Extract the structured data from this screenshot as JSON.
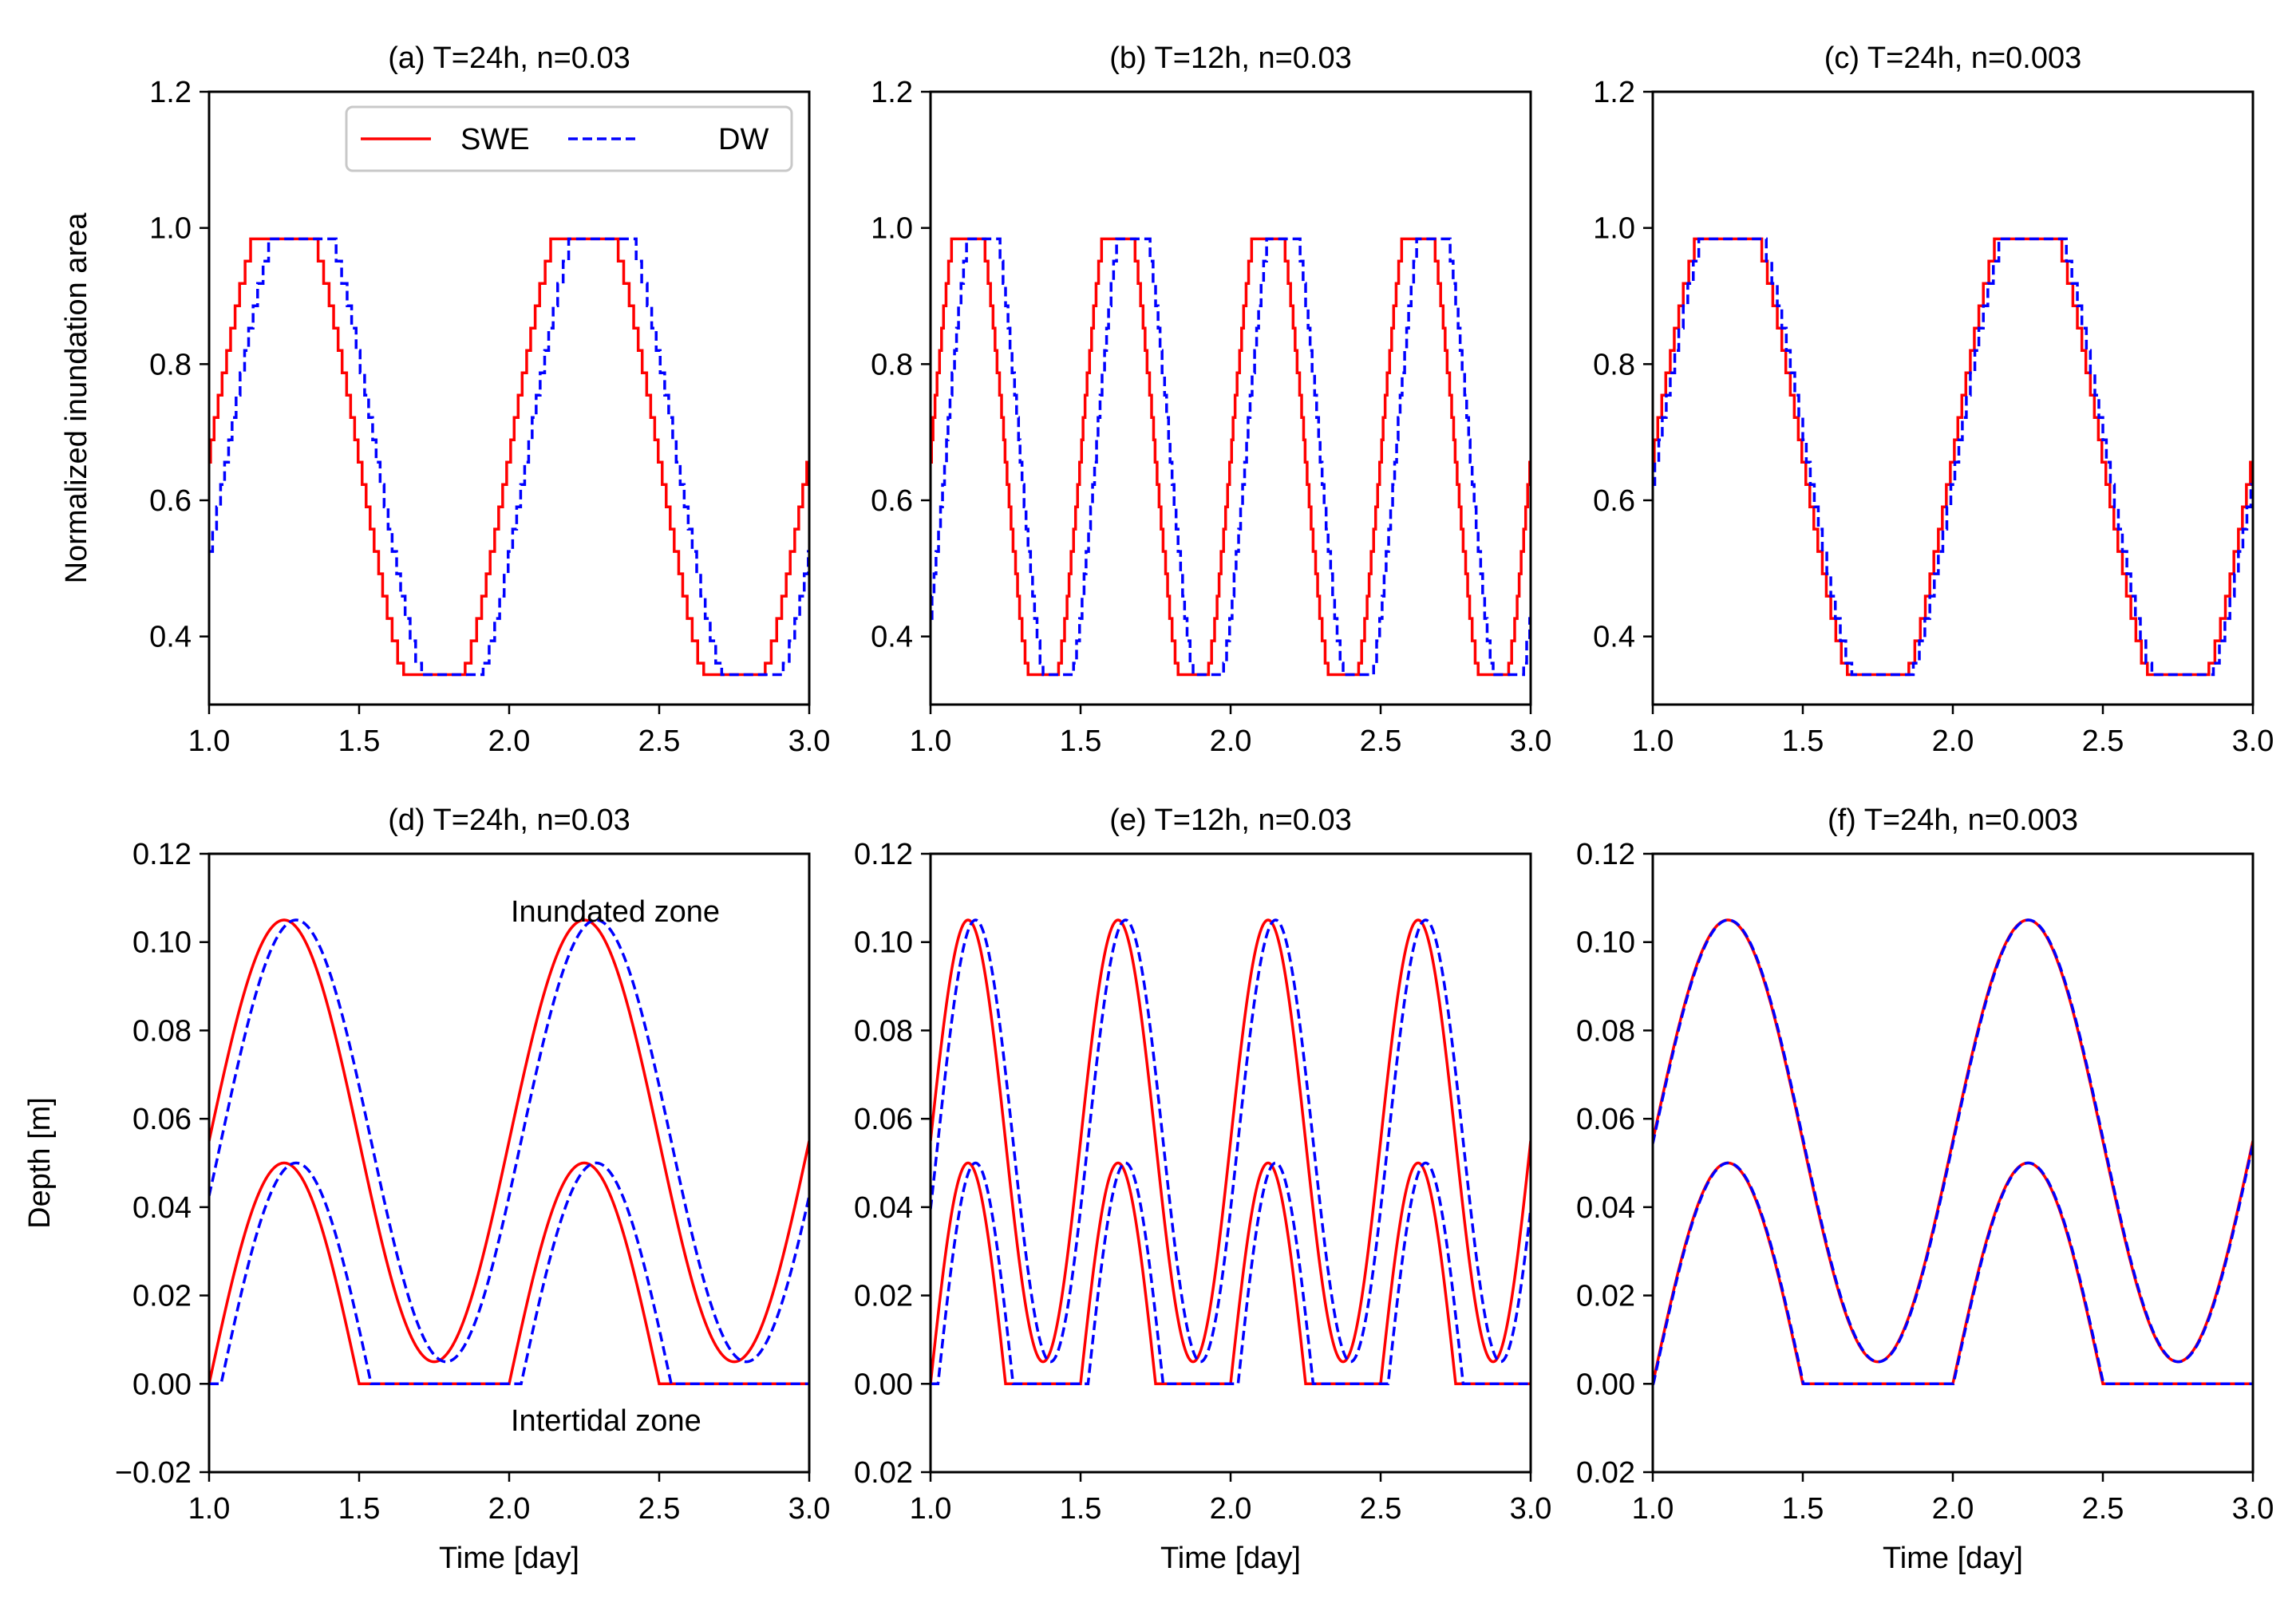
{
  "chart_data": {
    "type": "line",
    "layout": "2 rows x 3 columns",
    "legend": {
      "placement": "upper-right of panel (a)",
      "entries": [
        "SWE",
        "DW"
      ]
    },
    "series_styles": [
      {
        "name": "SWE",
        "color": "#ff0000",
        "line": "solid"
      },
      {
        "name": "DW",
        "color": "#0000ff",
        "line": "dashed"
      }
    ],
    "x_axis": {
      "range": [
        1.0,
        3.0
      ],
      "ticks": [
        "1.0",
        "1.5",
        "2.0",
        "2.5",
        "3.0"
      ],
      "label": "Time [day]"
    },
    "top_row": {
      "ylabel": "Normalized inundation area",
      "ylim": [
        0.3,
        1.2
      ],
      "yticks": [
        "0.4",
        "0.6",
        "0.8",
        "1.0",
        "1.2"
      ],
      "quantization_step": 0.0328,
      "min_value": 0.344,
      "max_value": 1.0
    },
    "bottom_row": {
      "ylabel": "Depth [m]",
      "ylim": [
        -0.02,
        0.12
      ],
      "yticks": [
        "−0.02",
        "0.00",
        "0.02",
        "0.04",
        "0.06",
        "0.08",
        "0.10",
        "0.12"
      ],
      "yticks_short": [
        "0.02",
        "0.00",
        "0.02",
        "0.04",
        "0.06",
        "0.08",
        "0.10",
        "0.12"
      ],
      "inundated_zone": {
        "mean": 0.055,
        "amplitude": 0.05
      },
      "intertidal_zone": {
        "peak": 0.05
      }
    },
    "annotations": {
      "upper": "Inundated zone",
      "lower": "Intertidal zone"
    },
    "panels": [
      {
        "id": "a",
        "title": "(a) T=24h, n=0.03",
        "period_days": 1.0,
        "manning_n": 0.03,
        "dw_lag_days": 0.06
      },
      {
        "id": "b",
        "title": "(b) T=12h, n=0.03",
        "period_days": 0.5,
        "manning_n": 0.03,
        "dw_lag_days": 0.05
      },
      {
        "id": "c",
        "title": "(c) T=24h, n=0.003",
        "period_days": 1.0,
        "manning_n": 0.003,
        "dw_lag_days": 0.015
      },
      {
        "id": "d",
        "title": "(d) T=24h, n=0.03",
        "period_days": 1.0,
        "manning_n": 0.03,
        "dw_lag_days": 0.04
      },
      {
        "id": "e",
        "title": "(e) T=12h, n=0.03",
        "period_days": 0.5,
        "manning_n": 0.03,
        "dw_lag_days": 0.025
      },
      {
        "id": "f",
        "title": "(f) T=24h, n=0.003",
        "period_days": 1.0,
        "manning_n": 0.003,
        "dw_lag_days": 0.002
      }
    ]
  }
}
